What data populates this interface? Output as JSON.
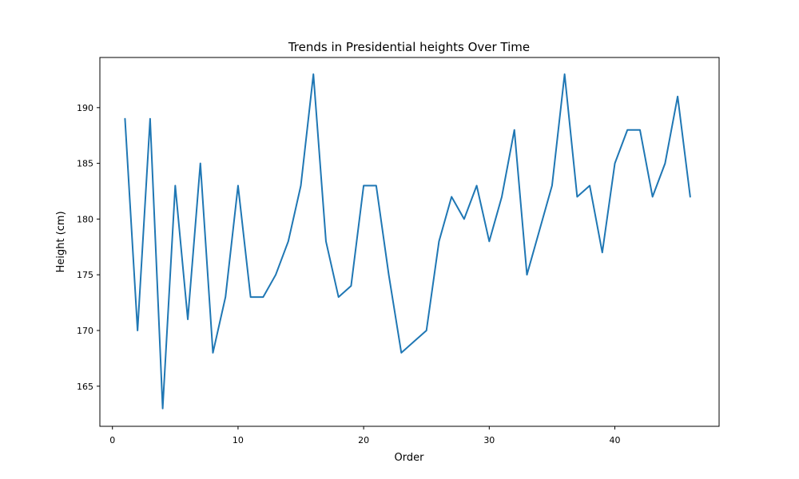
{
  "chart_data": {
    "type": "line",
    "title": "Trends in Presidential heights Over Time",
    "xlabel": "Order",
    "ylabel": "Height (cm)",
    "xlim": [
      -1,
      48.3
    ],
    "ylim": [
      161.4,
      194.5
    ],
    "xticks": [
      0,
      10,
      20,
      30,
      40
    ],
    "yticks": [
      165,
      170,
      175,
      180,
      185,
      190
    ],
    "grid": false,
    "series_color": "#1f77b4",
    "x": [
      1,
      2,
      3,
      4,
      5,
      6,
      7,
      8,
      9,
      10,
      11,
      12,
      13,
      14,
      15,
      16,
      17,
      18,
      19,
      20,
      21,
      22,
      23,
      24,
      25,
      26,
      27,
      28,
      29,
      30,
      31,
      32,
      33,
      34,
      35,
      36,
      37,
      38,
      39,
      40,
      41,
      42,
      43,
      44,
      45,
      46
    ],
    "series": [
      {
        "values": [
          189,
          170,
          189,
          163,
          183,
          171,
          185,
          168,
          173,
          183,
          173,
          173,
          175,
          178,
          183,
          193,
          178,
          173,
          174,
          183,
          183,
          175,
          168,
          169,
          170,
          178,
          182,
          180,
          183,
          178,
          182,
          188,
          175,
          179,
          183,
          193,
          182,
          183,
          177,
          185,
          188,
          188,
          182,
          185,
          191,
          182
        ]
      }
    ]
  }
}
